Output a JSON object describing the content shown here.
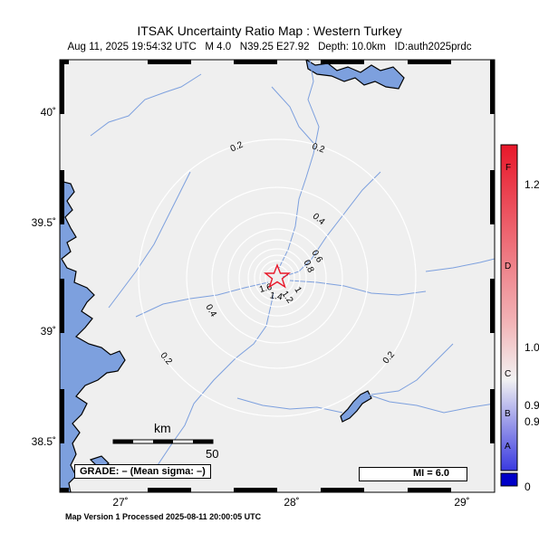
{
  "title": "ITSAK Uncertainty Ratio Map : Western Turkey",
  "subtitle": {
    "datetime": "Aug 11, 2025 19:54:32 UTC",
    "magnitude": "M 4.0",
    "location": "N39.25 E27.92",
    "depth": "Depth: 10.0km",
    "event_id": "ID:auth2025prdc"
  },
  "footer": "Map Version 1 Processed 2025-08-11 20:00:05 UTC",
  "axes": {
    "lat_labels": [
      "40˚",
      "39.5˚",
      "39˚",
      "38.5˚"
    ],
    "lon_labels": [
      "27˚",
      "28˚",
      "29˚"
    ]
  },
  "contours": {
    "labels": [
      "0.2",
      "0.2",
      "0.4",
      "0.6",
      "0.8",
      "1",
      "1.2",
      "1.4",
      "1.6",
      "0.4",
      "0.2",
      "0.2"
    ]
  },
  "epicenter": {
    "lat": 39.25,
    "lon": 27.92,
    "symbol": "star",
    "color": "#e8182a"
  },
  "scale_bar": {
    "unit": "km",
    "value": "50"
  },
  "grade_box": "GRADE: – (Mean sigma: –)",
  "mi_legend": "MI = 6.0",
  "colorbar": {
    "letters": [
      "F",
      "D",
      "C",
      "B",
      "A"
    ],
    "values": [
      "1.2",
      "1.0",
      "0.9",
      "0.9",
      "0"
    ],
    "colors": {
      "top": "#e8182a",
      "mid": "#f2f2f2",
      "bottom": "#3a3ae0",
      "under": "#0000c8"
    }
  },
  "colors": {
    "sea": "#7da0de",
    "land": "#efefef",
    "river": "#7da0de",
    "contour": "#ffffff"
  }
}
